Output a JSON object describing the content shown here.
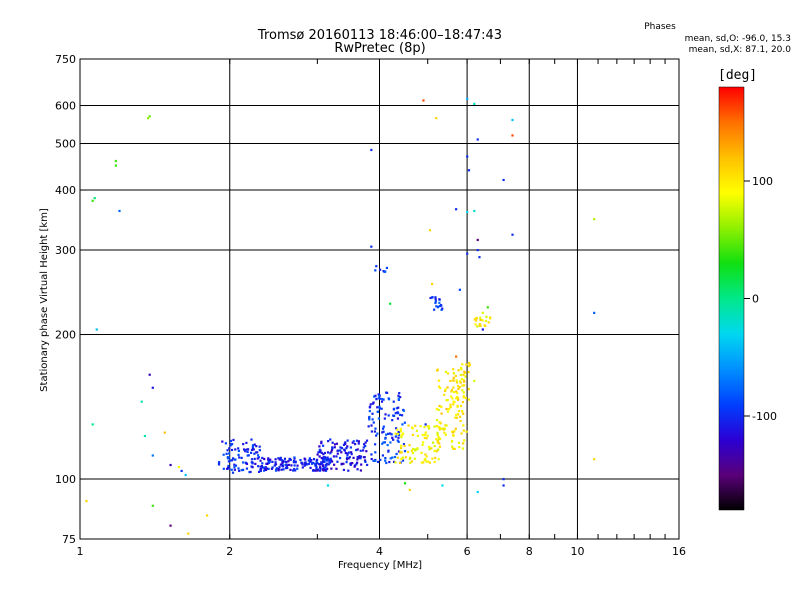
{
  "header": {
    "title_line1": "Tromsø 20160113 18:46:00–18:47:43",
    "title_line2": "RwPretec (8p)",
    "phases_title": "Phases",
    "phases_line1": "mean, sd,O: -96.0, 15.3",
    "phases_line2": "mean, sd,X:  87.1, 20.0"
  },
  "colorbar": {
    "label": "[deg]",
    "ticks": [
      {
        "value": 100,
        "label": "100"
      },
      {
        "value": 0,
        "label": "0"
      },
      {
        "value": -100,
        "label": "-100"
      }
    ],
    "range": [
      -180,
      180
    ],
    "colors": [
      "#000000",
      "#5a007a",
      "#2a00d4",
      "#0040ff",
      "#0090ff",
      "#00d8f0",
      "#00e88a",
      "#10e010",
      "#90f000",
      "#ffff00",
      "#ffc000",
      "#ff7000",
      "#ff0000"
    ]
  },
  "chart_data": {
    "type": "scatter",
    "title": "Tromsø 20160113 18:46:00–18:47:43",
    "subtitle": "RwPretec (8p)",
    "xlabel": "Frequency [MHz]",
    "ylabel": "Stationary phase Virtual Height [km]",
    "xscale": "log",
    "yscale": "log",
    "xlim": [
      1,
      16
    ],
    "ylim": [
      75,
      750
    ],
    "xticks": [
      1,
      2,
      4,
      6,
      8,
      10,
      16
    ],
    "yticks": [
      75,
      100,
      200,
      300,
      400,
      500,
      600,
      750
    ],
    "vgrid": [
      2,
      4,
      6,
      8,
      10
    ],
    "hgrid": [
      100,
      200,
      300,
      400,
      500,
      600
    ],
    "points": [
      {
        "x": 1.03,
        "y": 90,
        "phase": 110
      },
      {
        "x": 1.06,
        "y": 380,
        "phase": 40
      },
      {
        "x": 1.07,
        "y": 385,
        "phase": 5
      },
      {
        "x": 1.08,
        "y": 205,
        "phase": -40
      },
      {
        "x": 1.06,
        "y": 130,
        "phase": 0
      },
      {
        "x": 1.18,
        "y": 450,
        "phase": 40
      },
      {
        "x": 1.18,
        "y": 460,
        "phase": 40
      },
      {
        "x": 1.2,
        "y": 362,
        "phase": -75
      },
      {
        "x": 1.38,
        "y": 570,
        "phase": 50
      },
      {
        "x": 1.37,
        "y": 565,
        "phase": 60
      },
      {
        "x": 1.38,
        "y": 165,
        "phase": -130
      },
      {
        "x": 1.4,
        "y": 155,
        "phase": -110
      },
      {
        "x": 1.33,
        "y": 145,
        "phase": -10
      },
      {
        "x": 1.35,
        "y": 123,
        "phase": -10
      },
      {
        "x": 1.4,
        "y": 112,
        "phase": -70
      },
      {
        "x": 1.4,
        "y": 88,
        "phase": 40
      },
      {
        "x": 1.52,
        "y": 107,
        "phase": -130
      },
      {
        "x": 1.58,
        "y": 106,
        "phase": 90
      },
      {
        "x": 1.48,
        "y": 125,
        "phase": 120
      },
      {
        "x": 1.52,
        "y": 80,
        "phase": -150
      },
      {
        "x": 1.6,
        "y": 104,
        "phase": -100
      },
      {
        "x": 1.63,
        "y": 102,
        "phase": -40
      },
      {
        "x": 1.65,
        "y": 77,
        "phase": 110
      },
      {
        "x": 1.8,
        "y": 84,
        "phase": 110
      }
    ],
    "clusters": [
      {
        "x_min": 1.9,
        "x_max": 2.3,
        "y_min": 103,
        "y_max": 121,
        "n": 90,
        "phase": -100
      },
      {
        "x_min": 2.3,
        "x_max": 3.2,
        "y_min": 104,
        "y_max": 111,
        "n": 160,
        "phase": -105
      },
      {
        "x_min": 3.0,
        "x_max": 3.8,
        "y_min": 104,
        "y_max": 121,
        "n": 120,
        "phase": -110
      },
      {
        "x_min": 3.8,
        "x_max": 4.5,
        "y_min": 108,
        "y_max": 152,
        "n": 120,
        "phase": -95
      },
      {
        "x_min": 4.3,
        "x_max": 5.3,
        "y_min": 108,
        "y_max": 130,
        "n": 90,
        "phase": 95
      },
      {
        "x_min": 5.2,
        "x_max": 6.0,
        "y_min": 115,
        "y_max": 170,
        "n": 110,
        "phase": 100
      },
      {
        "x_min": 5.6,
        "x_max": 6.2,
        "y_min": 145,
        "y_max": 175,
        "n": 25,
        "phase": 100
      },
      {
        "x_min": 6.2,
        "x_max": 6.7,
        "y_min": 208,
        "y_max": 218,
        "n": 20,
        "phase": 95
      },
      {
        "x_min": 5.05,
        "x_max": 5.35,
        "y_min": 225,
        "y_max": 240,
        "n": 18,
        "phase": -90
      },
      {
        "x_min": 3.9,
        "x_max": 4.15,
        "y_min": 270,
        "y_max": 278,
        "n": 8,
        "phase": -95
      }
    ],
    "extra_points": [
      {
        "x": 3.85,
        "y": 485,
        "phase": -100
      },
      {
        "x": 3.85,
        "y": 305,
        "phase": -100
      },
      {
        "x": 4.2,
        "y": 232,
        "phase": 20
      },
      {
        "x": 4.9,
        "y": 615,
        "phase": 160
      },
      {
        "x": 5.2,
        "y": 565,
        "phase": 110
      },
      {
        "x": 5.05,
        "y": 330,
        "phase": 110
      },
      {
        "x": 5.1,
        "y": 255,
        "phase": 110
      },
      {
        "x": 6.0,
        "y": 620,
        "phase": -50
      },
      {
        "x": 6.2,
        "y": 605,
        "phase": -20
      },
      {
        "x": 6.3,
        "y": 510,
        "phase": -100
      },
      {
        "x": 6.0,
        "y": 470,
        "phase": -100
      },
      {
        "x": 6.05,
        "y": 440,
        "phase": -100
      },
      {
        "x": 5.7,
        "y": 365,
        "phase": -100
      },
      {
        "x": 6.0,
        "y": 360,
        "phase": -30
      },
      {
        "x": 6.2,
        "y": 362,
        "phase": -20
      },
      {
        "x": 6.3,
        "y": 315,
        "phase": -150
      },
      {
        "x": 6.3,
        "y": 300,
        "phase": -100
      },
      {
        "x": 6.35,
        "y": 290,
        "phase": -100
      },
      {
        "x": 6.0,
        "y": 295,
        "phase": -100
      },
      {
        "x": 5.8,
        "y": 248,
        "phase": -90
      },
      {
        "x": 6.6,
        "y": 228,
        "phase": 40
      },
      {
        "x": 6.45,
        "y": 222,
        "phase": 80
      },
      {
        "x": 6.45,
        "y": 205,
        "phase": -110
      },
      {
        "x": 7.1,
        "y": 420,
        "phase": -100
      },
      {
        "x": 7.4,
        "y": 560,
        "phase": -40
      },
      {
        "x": 7.4,
        "y": 520,
        "phase": 160
      },
      {
        "x": 7.4,
        "y": 323,
        "phase": -100
      },
      {
        "x": 7.1,
        "y": 100,
        "phase": -100
      },
      {
        "x": 7.1,
        "y": 97,
        "phase": -100
      },
      {
        "x": 6.3,
        "y": 94,
        "phase": -30
      },
      {
        "x": 5.35,
        "y": 97,
        "phase": -30
      },
      {
        "x": 4.6,
        "y": 95,
        "phase": 110
      },
      {
        "x": 3.15,
        "y": 97,
        "phase": -30
      },
      {
        "x": 10.8,
        "y": 348,
        "phase": 70
      },
      {
        "x": 10.8,
        "y": 222,
        "phase": -80
      },
      {
        "x": 10.8,
        "y": 110,
        "phase": 110
      },
      {
        "x": 5.7,
        "y": 180,
        "phase": 150
      },
      {
        "x": 4.95,
        "y": 130,
        "phase": -100
      },
      {
        "x": 4.5,
        "y": 98,
        "phase": 30
      }
    ]
  }
}
